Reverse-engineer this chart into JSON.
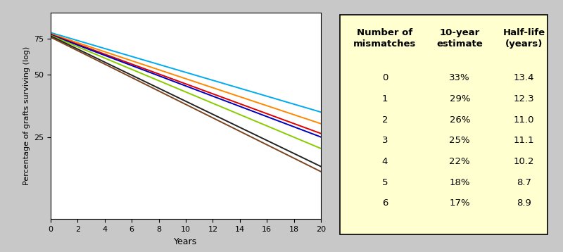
{
  "ylabel": "Percentage of grafts surviving (log)",
  "xlabel": "Years",
  "background_color": "#c8c8c8",
  "plot_bg_color": "#ffffff",
  "table_bg_color": "#ffffd0",
  "x_ticks": [
    0,
    2,
    4,
    6,
    8,
    10,
    12,
    14,
    16,
    18,
    20
  ],
  "y_ticks": [
    25,
    50,
    75
  ],
  "ylim": [
    10,
    100
  ],
  "xlim": [
    0,
    20
  ],
  "mismatches": [
    0,
    1,
    2,
    3,
    4,
    5,
    6
  ],
  "ten_year": [
    "33%",
    "29%",
    "26%",
    "25%",
    "22%",
    "18%",
    "17%"
  ],
  "half_life": [
    "13.4",
    "12.3",
    "11.0",
    "11.1",
    "10.2",
    "8.7",
    "8.9"
  ],
  "line_colors": [
    "#00aaee",
    "#ff8800",
    "#dd0000",
    "#0000bb",
    "#88cc00",
    "#222222",
    "#7a4520"
  ],
  "line_start_y": [
    80,
    79,
    78.5,
    78,
    77.5,
    77,
    76
  ],
  "line_end_y": [
    33,
    29,
    26,
    25,
    22,
    18,
    17
  ]
}
